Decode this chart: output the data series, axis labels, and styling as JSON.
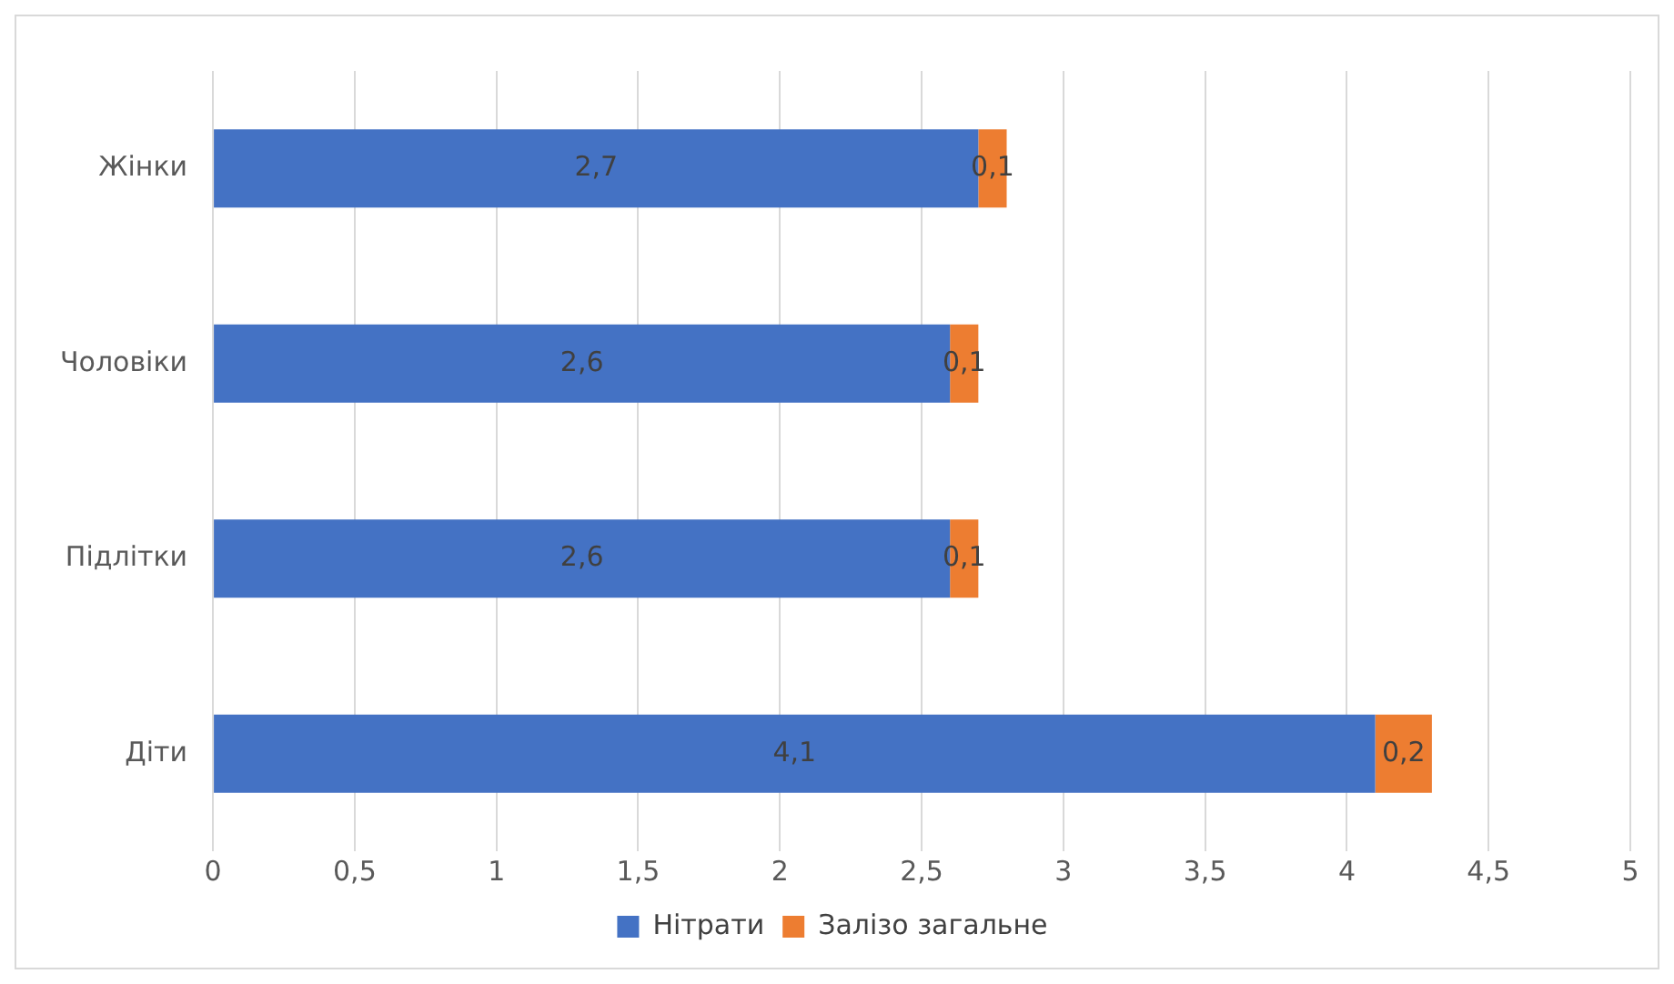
{
  "chart_data": {
    "type": "bar",
    "orientation": "horizontal",
    "stacked": true,
    "categories": [
      "Жінки",
      "Чоловіки",
      "Підлітки",
      "Діти"
    ],
    "series": [
      {
        "name": "Нітрати",
        "color": "#4472c4",
        "values": [
          2.7,
          2.6,
          2.6,
          4.1
        ],
        "value_labels": [
          "2,7",
          "2,6",
          "2,6",
          "4,1"
        ]
      },
      {
        "name": "Залізо загальне",
        "color": "#ed7d31",
        "values": [
          0.1,
          0.1,
          0.1,
          0.2
        ],
        "value_labels": [
          "0,1",
          "0,1",
          "0,1",
          "0,2"
        ]
      }
    ],
    "xlim": [
      0,
      5
    ],
    "xticks": [
      0,
      {
        "value": 0.5,
        "label": "0,5"
      },
      1,
      {
        "value": 1.5,
        "label": "1,5"
      },
      2,
      {
        "value": 2.5,
        "label": "2,5"
      },
      3,
      {
        "value": 3.5,
        "label": "3,5"
      },
      4,
      {
        "value": 4.5,
        "label": "4,5"
      },
      5
    ],
    "grid": "x",
    "legend": "bottom"
  }
}
